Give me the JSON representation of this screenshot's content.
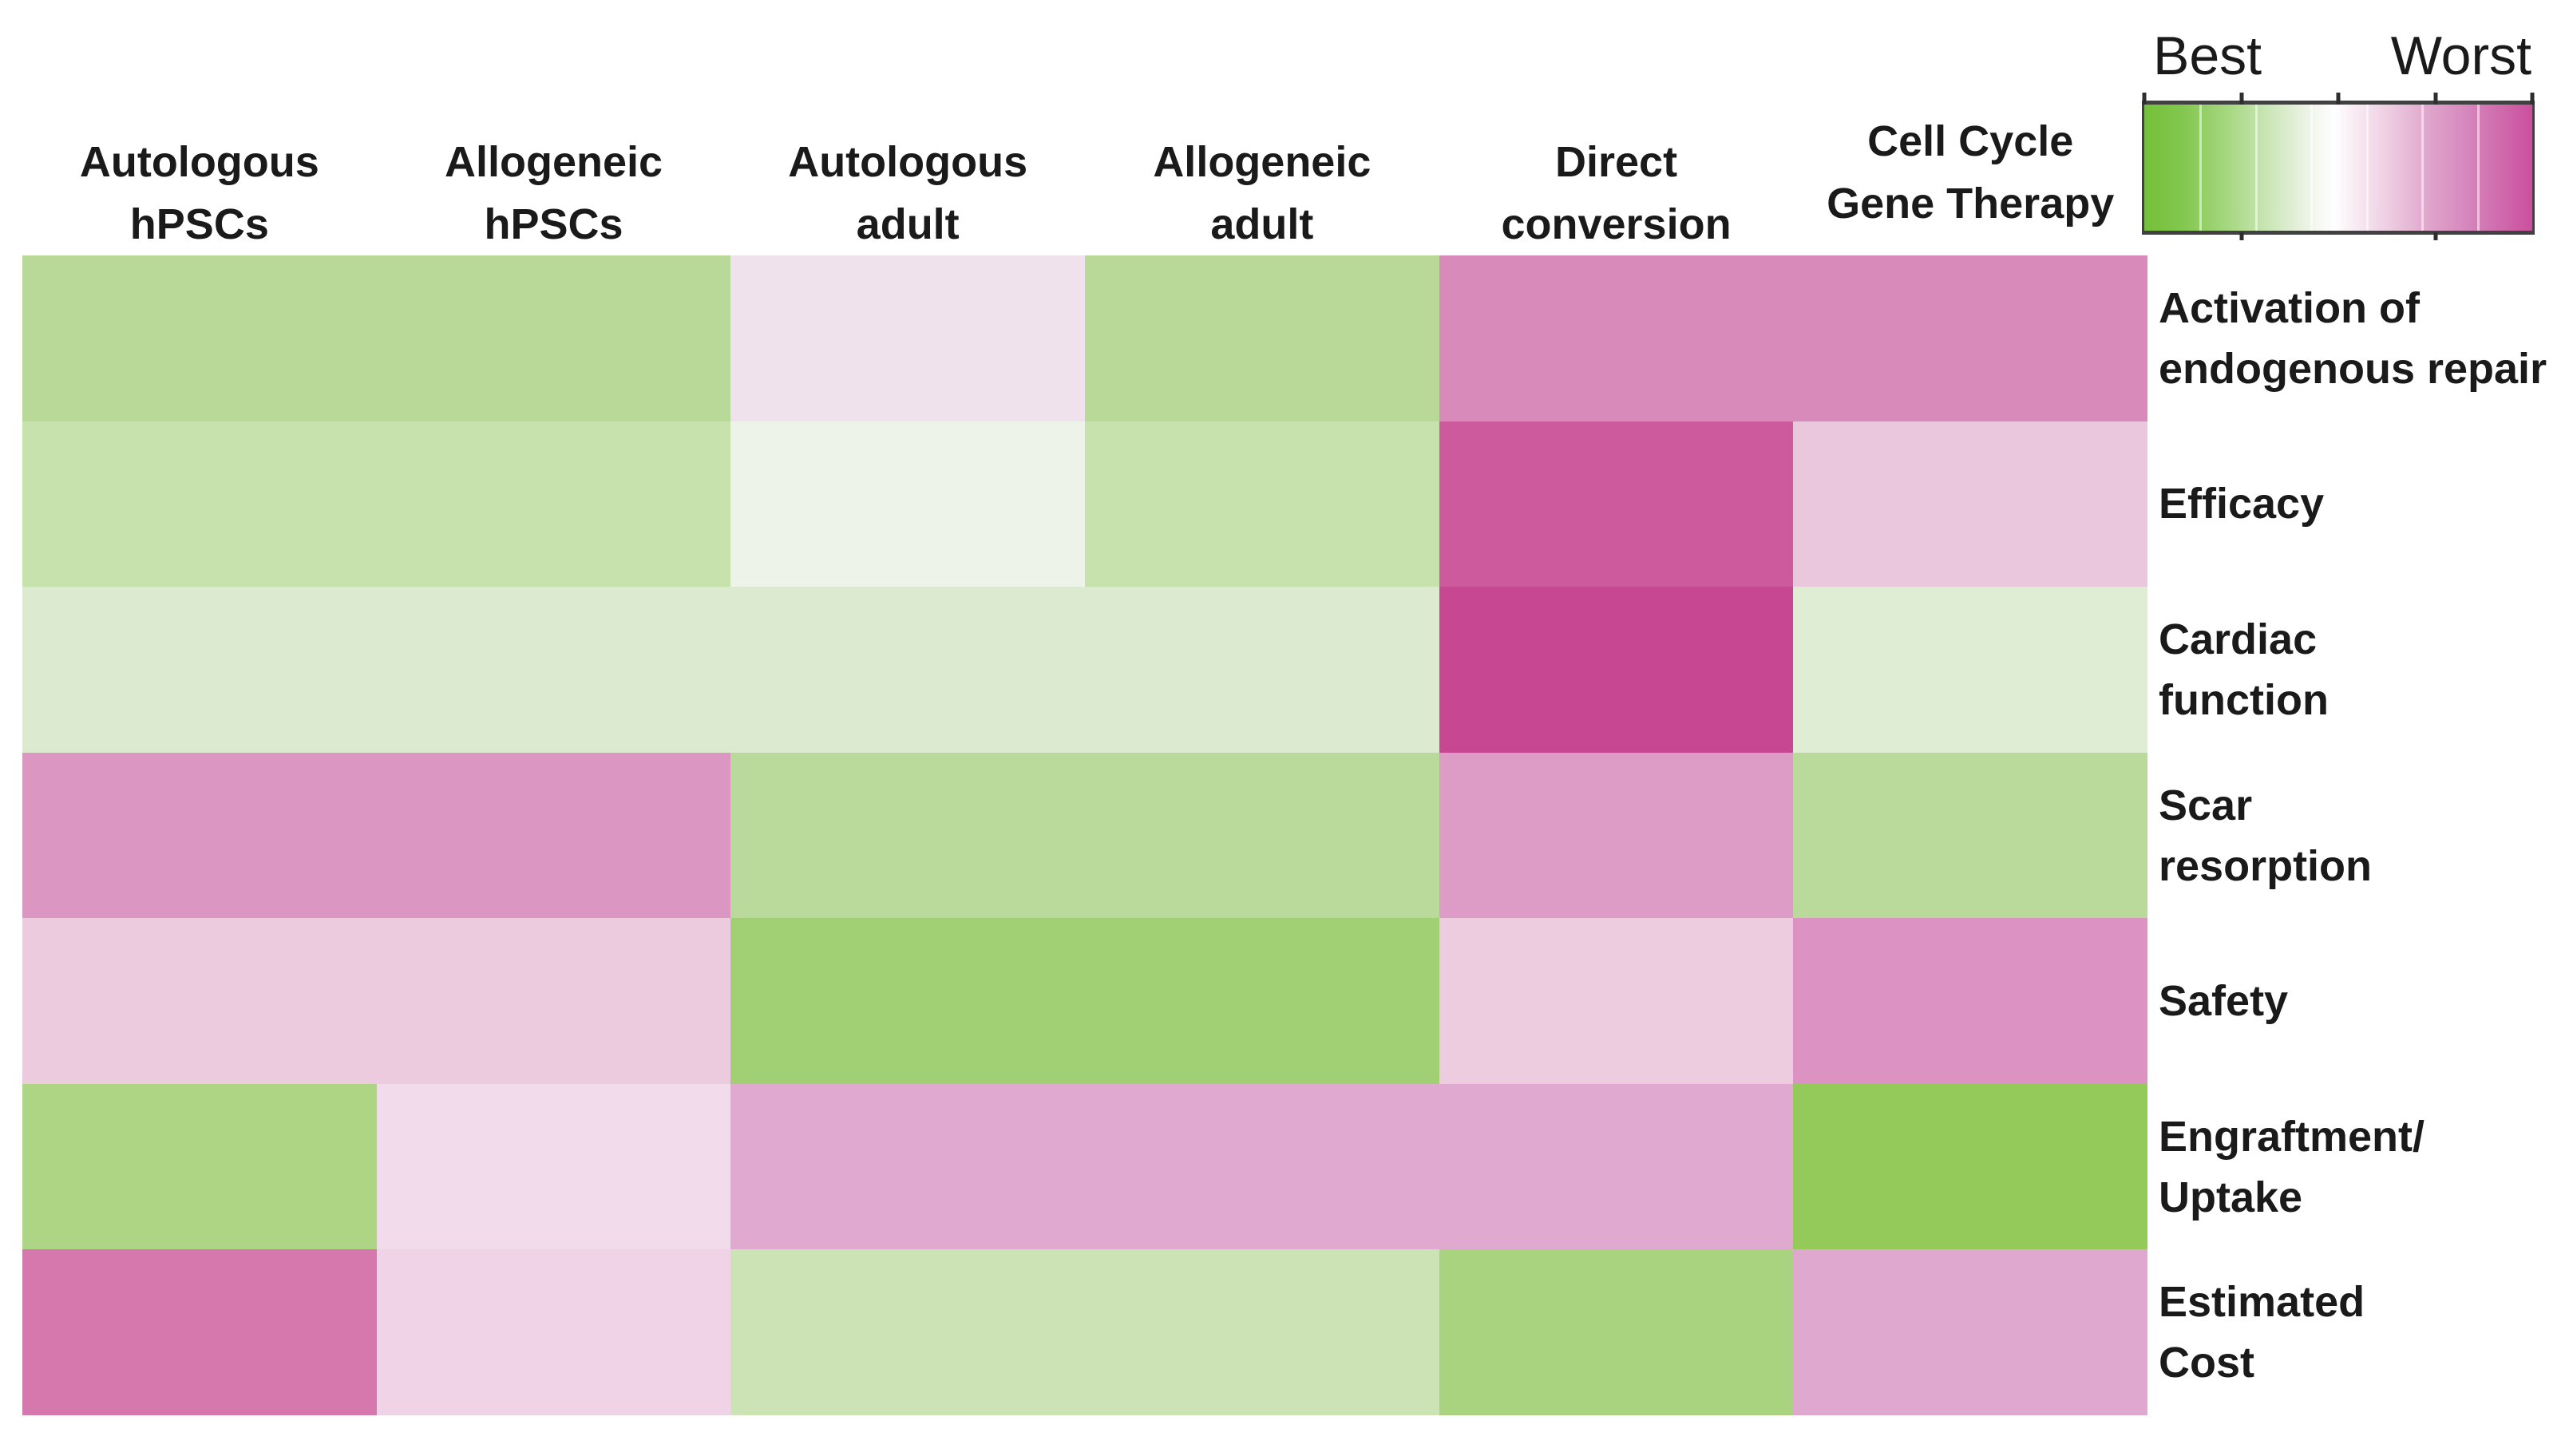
{
  "legend": {
    "best_label": "Best",
    "worst_label": "Worst",
    "segments": 7,
    "top_ticks": [
      0,
      25,
      50,
      75,
      100
    ],
    "bottom_ticks": [
      25,
      75
    ],
    "gradient_stops": [
      "#74c03a 0%",
      "#83c74f 10%",
      "#a8d883 22%",
      "#cfe7bd 33%",
      "#f3f7ee 44%",
      "#ffffff 49%",
      "#f9ecf4 54%",
      "#ecc9df 64%",
      "#dfa3cb 74%",
      "#d584bb 84%",
      "#cb4f9e 100%"
    ]
  },
  "columns": [
    {
      "id": "autologous-hpscs",
      "lines": [
        "Autologous",
        "hPSCs"
      ]
    },
    {
      "id": "allogeneic-hpscs",
      "lines": [
        "Allogeneic",
        "hPSCs"
      ]
    },
    {
      "id": "autologous-adult",
      "lines": [
        "Autologous",
        "adult"
      ]
    },
    {
      "id": "allogeneic-adult",
      "lines": [
        "Allogeneic",
        "adult"
      ]
    },
    {
      "id": "direct-conversion",
      "lines": [
        "Direct",
        "conversion"
      ]
    },
    {
      "id": "cell-cycle-gene-therapy",
      "lines": [
        "Cell Cycle",
        "Gene Therapy"
      ]
    }
  ],
  "rows": [
    {
      "id": "activation-endogenous-repair",
      "lines": [
        "Activation of",
        "endogenous repair"
      ]
    },
    {
      "id": "efficacy",
      "lines": [
        "Efficacy"
      ]
    },
    {
      "id": "cardiac-function",
      "lines": [
        "Cardiac",
        "function"
      ]
    },
    {
      "id": "scar-resorption",
      "lines": [
        "Scar",
        "resorption"
      ]
    },
    {
      "id": "safety",
      "lines": [
        "Safety"
      ]
    },
    {
      "id": "engraftment-uptake",
      "lines": [
        "Engraftment/",
        "Uptake"
      ]
    },
    {
      "id": "estimated-cost",
      "lines": [
        "Estimated",
        "Cost"
      ]
    }
  ],
  "chart_data": {
    "type": "heatmap",
    "title": "",
    "x_categories": [
      "Autologous hPSCs",
      "Allogeneic hPSCs",
      "Autologous adult",
      "Allogeneic adult",
      "Direct conversion",
      "Cell Cycle Gene Therapy"
    ],
    "y_categories": [
      "Activation of endogenous repair",
      "Efficacy",
      "Cardiac function",
      "Scar resorption",
      "Safety",
      "Engraftment/Uptake",
      "Estimated Cost"
    ],
    "scale": {
      "best": 1,
      "worst": 7,
      "meaning": "green = Best, magenta = Worst"
    },
    "values": [
      [
        3,
        3,
        4,
        3,
        5.5,
        5.5
      ],
      [
        2.5,
        2.5,
        4,
        2.5,
        6.5,
        5
      ],
      [
        3.5,
        3.5,
        3.5,
        3.5,
        7,
        3.5
      ],
      [
        5.5,
        5.5,
        3,
        3,
        5.5,
        3
      ],
      [
        5,
        5,
        2,
        2,
        5,
        5.5
      ],
      [
        2,
        4.5,
        5,
        5,
        5,
        1
      ],
      [
        6,
        4.5,
        3,
        3,
        2,
        5
      ]
    ],
    "blocks": [
      [
        {
          "span": 2,
          "color": "#b9d999"
        },
        {
          "span": 1,
          "color": "#f0e2ec"
        },
        {
          "span": 1,
          "color": "#b9d999"
        },
        {
          "span": 2,
          "color": "#d88aba"
        }
      ],
      [
        {
          "span": 2,
          "color": "#c8e2ae"
        },
        {
          "span": 1,
          "color": "#eef3ea"
        },
        {
          "span": 1,
          "color": "#c8e2ae"
        },
        {
          "span": 1,
          "color": "#cc5a9d"
        },
        {
          "span": 1,
          "color": "#ebc7de"
        }
      ],
      [
        {
          "span": 4,
          "color": "#dcead0"
        },
        {
          "span": 1,
          "color": "#c74793"
        },
        {
          "span": 1,
          "color": "#e0edd5"
        }
      ],
      [
        {
          "span": 2,
          "color": "#db97c2"
        },
        {
          "span": 2,
          "color": "#bada9b"
        },
        {
          "span": 1,
          "color": "#dd9cc6"
        },
        {
          "span": 1,
          "color": "#bada9b"
        }
      ],
      [
        {
          "span": 2,
          "color": "#edcbdf"
        },
        {
          "span": 2,
          "color": "#a0d073"
        },
        {
          "span": 1,
          "color": "#eeccdf"
        },
        {
          "span": 1,
          "color": "#dc92c3"
        }
      ],
      [
        {
          "span": 1,
          "color": "#aed584"
        },
        {
          "span": 1,
          "color": "#f2dcec"
        },
        {
          "span": 3,
          "color": "#e0aad0"
        },
        {
          "span": 1,
          "color": "#93ca5a"
        }
      ],
      [
        {
          "span": 1,
          "color": "#d678ae"
        },
        {
          "span": 1,
          "color": "#f0d3e7"
        },
        {
          "span": 2,
          "color": "#cce4b5"
        },
        {
          "span": 1,
          "color": "#a9d37e"
        },
        {
          "span": 1,
          "color": "#dfa9cf"
        }
      ]
    ]
  }
}
